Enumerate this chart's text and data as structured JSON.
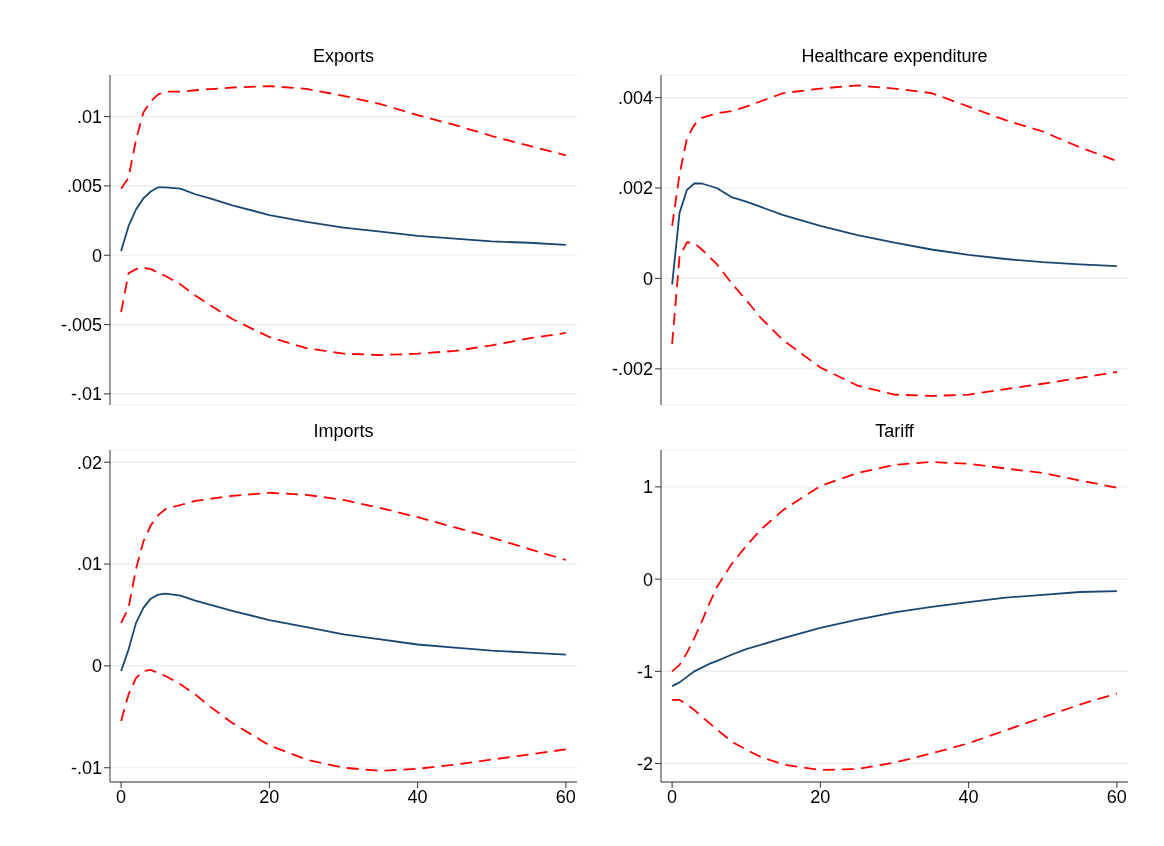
{
  "chart_data": [
    {
      "type": "line",
      "title": "Exports",
      "xlim": [
        -1.5,
        61.5
      ],
      "xticks": [
        0,
        20,
        40,
        60
      ],
      "ylim": [
        -0.0108,
        0.013
      ],
      "yticks": [
        {
          "value": -0.01,
          "label": "-.01"
        },
        {
          "value": -0.005,
          "label": "-.005"
        },
        0,
        {
          "value": 0.005,
          "label": ".005"
        },
        {
          "value": 0.01,
          "label": ".01"
        }
      ],
      "grid": "y",
      "tick_labels": "y",
      "series": [
        {
          "color": "#ff0000",
          "line_style": "dashed",
          "x": [
            0,
            1,
            2,
            3,
            4,
            5,
            6,
            8,
            10,
            15,
            20,
            25,
            30,
            35,
            40,
            45,
            50,
            55,
            60
          ],
          "values": [
            0.0048,
            0.0056,
            0.0083,
            0.0103,
            0.0111,
            0.0116,
            0.0118,
            0.0118,
            0.0119,
            0.0121,
            0.0122,
            0.012,
            0.0115,
            0.0109,
            0.0101,
            0.0094,
            0.0086,
            0.0079,
            0.0072
          ]
        },
        {
          "color": "#1a476f",
          "line_style": "solid",
          "x": [
            0,
            1,
            2,
            3,
            4,
            5,
            6,
            8,
            10,
            12,
            15,
            20,
            25,
            30,
            35,
            40,
            45,
            50,
            55,
            60
          ],
          "values": [
            0.0003,
            0.0021,
            0.0033,
            0.0041,
            0.0046,
            0.0049,
            0.0049,
            0.0048,
            0.0044,
            0.0041,
            0.0036,
            0.0029,
            0.0024,
            0.002,
            0.0017,
            0.0014,
            0.0012,
            0.001,
            0.0009,
            0.00075
          ]
        },
        {
          "color": "#ff0000",
          "line_style": "dashed",
          "x": [
            0,
            1,
            2,
            3,
            4,
            6,
            8,
            10,
            12,
            15,
            20,
            25,
            30,
            35,
            40,
            45,
            50,
            55,
            60
          ],
          "values": [
            -0.0041,
            -0.0013,
            -0.001,
            -0.0009,
            -0.001,
            -0.0015,
            -0.0021,
            -0.0029,
            -0.0036,
            -0.0046,
            -0.0059,
            -0.0067,
            -0.0071,
            -0.0072,
            -0.0071,
            -0.0069,
            -0.0065,
            -0.006,
            -0.0056
          ]
        }
      ]
    },
    {
      "type": "line",
      "title": "Healthcare expenditure",
      "xlim": [
        -1.5,
        61.5
      ],
      "xticks": [
        0,
        20,
        40,
        60
      ],
      "ylim": [
        -0.0028,
        0.0045
      ],
      "yticks": [
        {
          "value": -0.002,
          "label": "-.002"
        },
        0,
        {
          "value": 0.002,
          "label": ".002"
        },
        {
          "value": 0.004,
          "label": ".004"
        }
      ],
      "grid": "y",
      "tick_labels": "y",
      "series": [
        {
          "color": "#ff0000",
          "line_style": "dashed",
          "x": [
            0,
            1,
            2,
            3,
            4,
            5,
            6,
            8,
            10,
            15,
            20,
            25,
            30,
            35,
            40,
            45,
            50,
            55,
            60
          ],
          "values": [
            0.00116,
            0.0023,
            0.0031,
            0.0034,
            0.00355,
            0.0036,
            0.00365,
            0.0037,
            0.0038,
            0.0041,
            0.0042,
            0.00427,
            0.0042,
            0.0041,
            0.0038,
            0.0035,
            0.00325,
            0.0029,
            0.0026
          ]
        },
        {
          "color": "#1a476f",
          "line_style": "solid",
          "x": [
            0,
            1,
            2,
            3,
            4,
            5,
            6,
            8,
            10,
            15,
            20,
            25,
            30,
            35,
            40,
            45,
            50,
            55,
            60
          ],
          "values": [
            -0.00013,
            0.00145,
            0.00196,
            0.0021,
            0.0021,
            0.00205,
            0.002,
            0.0018,
            0.0017,
            0.0014,
            0.00116,
            0.00096,
            0.00079,
            0.00064,
            0.00052,
            0.00043,
            0.00036,
            0.00031,
            0.00027
          ]
        },
        {
          "color": "#ff0000",
          "line_style": "dashed",
          "x": [
            0,
            1,
            2,
            3,
            4,
            6,
            8,
            10,
            12,
            15,
            20,
            25,
            30,
            35,
            40,
            45,
            50,
            55,
            60
          ],
          "values": [
            -0.00145,
            0.00048,
            0.0008,
            0.00078,
            0.00064,
            0.00032,
            -0.0001,
            -0.00048,
            -0.00088,
            -0.00137,
            -0.00197,
            -0.00237,
            -0.00257,
            -0.0026,
            -0.00257,
            -0.00245,
            -0.00233,
            -0.0022,
            -0.00207
          ]
        }
      ]
    },
    {
      "type": "line",
      "title": "Imports",
      "xlim": [
        -1.5,
        61.5
      ],
      "xticks": [
        0,
        20,
        40,
        60
      ],
      "ylim": [
        -0.0114,
        0.0212
      ],
      "yticks": [
        {
          "value": -0.01,
          "label": "-.01"
        },
        0,
        {
          "value": 0.01,
          "label": ".01"
        },
        {
          "value": 0.02,
          "label": ".02"
        }
      ],
      "grid": "y",
      "series": [
        {
          "color": "#ff0000",
          "line_style": "dashed",
          "x": [
            0,
            1,
            2,
            3,
            4,
            5,
            6,
            8,
            10,
            15,
            20,
            25,
            30,
            35,
            40,
            45,
            50,
            55,
            60
          ],
          "values": [
            0.0042,
            0.0057,
            0.0095,
            0.0122,
            0.0138,
            0.0148,
            0.0154,
            0.0158,
            0.0162,
            0.0167,
            0.017,
            0.0168,
            0.0163,
            0.0155,
            0.0146,
            0.0136,
            0.0126,
            0.0115,
            0.0104
          ]
        },
        {
          "color": "#1a476f",
          "line_style": "solid",
          "x": [
            0,
            1,
            2,
            3,
            4,
            5,
            6,
            8,
            10,
            15,
            20,
            25,
            30,
            35,
            40,
            45,
            50,
            55,
            60
          ],
          "values": [
            -0.0005,
            0.0016,
            0.0042,
            0.0057,
            0.0066,
            0.007,
            0.0071,
            0.0069,
            0.0064,
            0.0054,
            0.0045,
            0.0038,
            0.0031,
            0.0026,
            0.0021,
            0.0018,
            0.0015,
            0.0013,
            0.0011
          ]
        },
        {
          "color": "#ff0000",
          "line_style": "dashed",
          "x": [
            0,
            1,
            2,
            3,
            4,
            6,
            8,
            10,
            12,
            15,
            20,
            25,
            30,
            35,
            40,
            45,
            50,
            55,
            60
          ],
          "values": [
            -0.0054,
            -0.0028,
            -0.0012,
            -0.0005,
            -0.0004,
            -0.001,
            -0.0018,
            -0.0028,
            -0.004,
            -0.0056,
            -0.0078,
            -0.0092,
            -0.01,
            -0.0103,
            -0.0101,
            -0.0097,
            -0.0092,
            -0.0087,
            -0.0082
          ]
        }
      ]
    },
    {
      "type": "line",
      "title": "Tariff",
      "xlim": [
        -1.5,
        61.5
      ],
      "xticks": [
        0,
        20,
        40,
        60
      ],
      "ylim": [
        -2.2,
        1.4
      ],
      "yticks": [
        -2,
        -1,
        0,
        1
      ],
      "grid": "y",
      "series": [
        {
          "color": "#ff0000",
          "line_style": "dashed",
          "x": [
            0,
            1,
            2,
            3,
            4,
            5,
            6,
            8,
            10,
            12,
            15,
            20,
            25,
            30,
            35,
            40,
            45,
            50,
            55,
            60
          ],
          "values": [
            -1.0,
            -0.93,
            -0.8,
            -0.64,
            -0.46,
            -0.27,
            -0.09,
            0.16,
            0.36,
            0.54,
            0.75,
            1.01,
            1.15,
            1.24,
            1.27,
            1.25,
            1.2,
            1.15,
            1.07,
            0.99
          ]
        },
        {
          "color": "#1a476f",
          "line_style": "solid",
          "x": [
            0,
            1,
            2,
            3,
            4,
            5,
            6,
            8,
            10,
            15,
            20,
            25,
            30,
            35,
            40,
            45,
            50,
            55,
            60
          ],
          "values": [
            -1.16,
            -1.12,
            -1.06,
            -1.0,
            -0.96,
            -0.92,
            -0.89,
            -0.82,
            -0.76,
            -0.64,
            -0.53,
            -0.44,
            -0.36,
            -0.3,
            -0.25,
            -0.2,
            -0.17,
            -0.14,
            -0.13
          ]
        },
        {
          "color": "#ff0000",
          "line_style": "dashed",
          "x": [
            0,
            1,
            2,
            3,
            5,
            8,
            10,
            12,
            15,
            20,
            25,
            30,
            35,
            40,
            45,
            50,
            55,
            60
          ],
          "values": [
            -1.31,
            -1.31,
            -1.36,
            -1.42,
            -1.56,
            -1.76,
            -1.85,
            -1.93,
            -2.01,
            -2.07,
            -2.06,
            -1.99,
            -1.89,
            -1.78,
            -1.64,
            -1.5,
            -1.36,
            -1.24
          ]
        }
      ]
    }
  ]
}
